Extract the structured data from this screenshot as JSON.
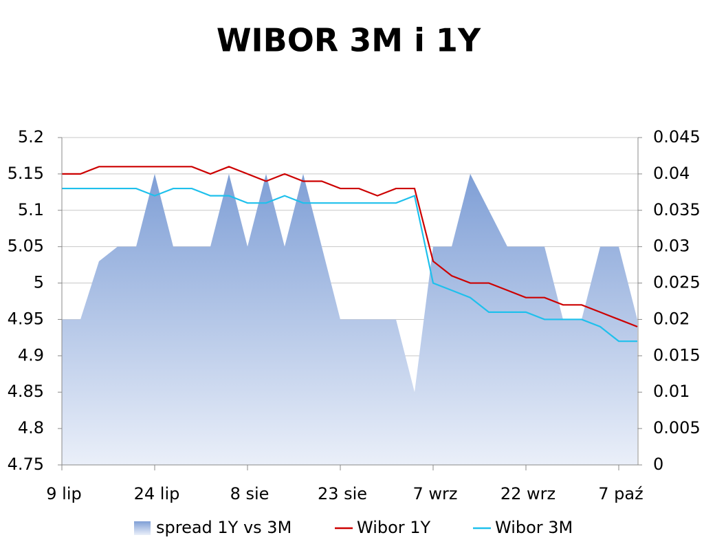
{
  "chart_data": {
    "type": "line",
    "title": "WIBOR 3M i 1Y",
    "categories": [
      "9 lip",
      null,
      null,
      null,
      null,
      "24 lip",
      null,
      null,
      null,
      null,
      "8 sie",
      null,
      null,
      null,
      null,
      "23 sie",
      null,
      null,
      null,
      null,
      "7 wrz",
      null,
      null,
      null,
      null,
      "22 wrz",
      null,
      null,
      null,
      null,
      "7 paź",
      null
    ],
    "series": [
      {
        "name": "spread 1Y vs 3M",
        "type": "area",
        "axis": "y2",
        "color": "#86a5d9",
        "values": [
          0.02,
          0.02,
          0.028,
          0.03,
          0.03,
          0.04,
          0.03,
          0.03,
          0.03,
          0.04,
          0.03,
          0.04,
          0.03,
          0.04,
          0.03,
          0.02,
          0.02,
          0.02,
          0.02,
          0.01,
          0.03,
          0.03,
          0.04,
          0.035,
          0.03,
          0.03,
          0.03,
          0.02,
          0.02,
          0.03,
          0.03,
          0.02
        ]
      },
      {
        "name": "Wibor 1Y",
        "type": "line",
        "color": "#cc0000",
        "values": [
          5.15,
          5.15,
          5.16,
          5.16,
          5.16,
          5.16,
          5.16,
          5.16,
          5.15,
          5.16,
          5.15,
          5.14,
          5.15,
          5.14,
          5.14,
          5.13,
          5.13,
          5.12,
          5.13,
          5.13,
          5.03,
          5.01,
          5.0,
          5.0,
          4.99,
          4.98,
          4.98,
          4.97,
          4.97,
          4.96,
          4.95,
          4.94
        ]
      },
      {
        "name": "Wibor 3M",
        "type": "line",
        "color": "#1ec0ec",
        "values": [
          5.13,
          5.13,
          5.13,
          5.13,
          5.13,
          5.12,
          5.13,
          5.13,
          5.12,
          5.12,
          5.11,
          5.11,
          5.12,
          5.11,
          5.11,
          5.11,
          5.11,
          5.11,
          5.11,
          5.12,
          5.0,
          4.99,
          4.98,
          4.96,
          4.96,
          4.96,
          4.95,
          4.95,
          4.95,
          4.94,
          4.92,
          4.92
        ]
      }
    ],
    "ylim": [
      4.75,
      5.2
    ],
    "yticks": [
      4.75,
      4.8,
      4.85,
      4.9,
      4.95,
      5,
      5.05,
      5.1,
      5.15,
      5.2
    ],
    "y2lim": [
      0,
      0.045
    ],
    "y2ticks": [
      0,
      0.005,
      0.01,
      0.015,
      0.02,
      0.025,
      0.03,
      0.035,
      0.04,
      0.045
    ],
    "grid": true,
    "legend": "bottom"
  }
}
